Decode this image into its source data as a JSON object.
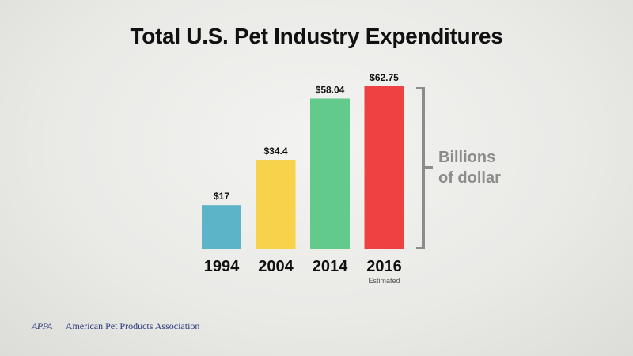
{
  "chart_data": {
    "type": "bar",
    "title": "Total U.S. Pet Industry Expenditures",
    "categories": [
      "1994",
      "2004",
      "2014",
      "2016"
    ],
    "values": [
      17,
      34.4,
      58.04,
      62.75
    ],
    "data_labels": [
      "$17",
      "$34.4",
      "$58.04",
      "$62.75"
    ],
    "category_notes": [
      "",
      "",
      "",
      "Estimated"
    ],
    "bar_colors": [
      "#5bb4c8",
      "#f8d24a",
      "#62cb8c",
      "#ef4141"
    ],
    "units_label_lines": [
      "Billions",
      "of dollar"
    ],
    "ylim": [
      0,
      62.75
    ],
    "grid": false,
    "legend": "none"
  },
  "footer": {
    "logo": "APPA",
    "organization": "American Pet Products Association"
  }
}
